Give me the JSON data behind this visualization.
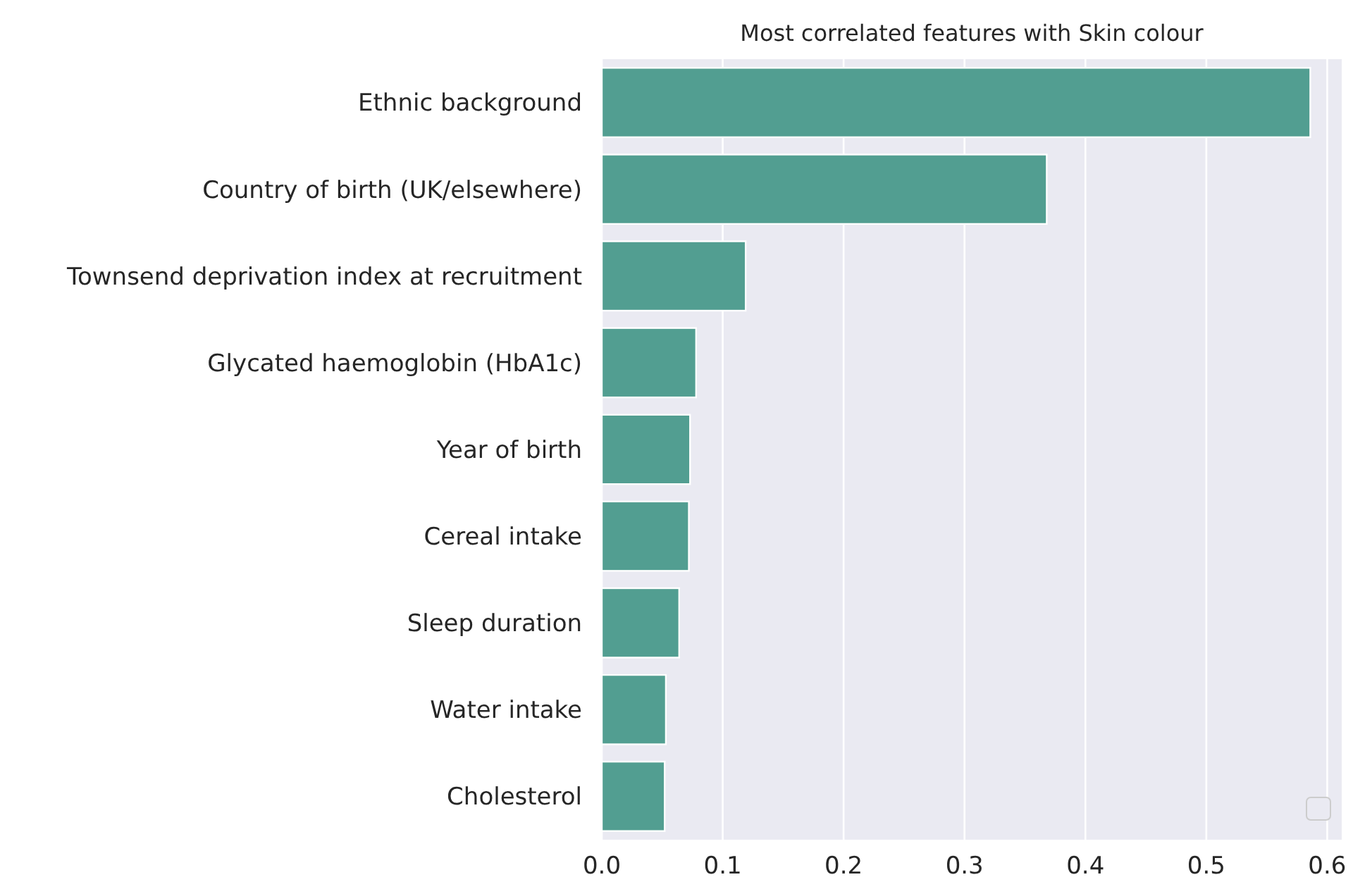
{
  "chart_data": {
    "type": "bar",
    "orientation": "horizontal",
    "title": "Most correlated features with Skin colour",
    "categories": [
      "Ethnic background",
      "Country of birth (UK/elsewhere)",
      "Townsend deprivation index at recruitment",
      "Glycated haemoglobin (HbA1c)",
      "Year of birth",
      "Cereal intake",
      "Sleep duration",
      "Water intake",
      "Cholesterol"
    ],
    "values": [
      0.586,
      0.368,
      0.119,
      0.078,
      0.073,
      0.072,
      0.064,
      0.053,
      0.052
    ],
    "color": "#529e91",
    "xlim": [
      0,
      0.612
    ],
    "xticks": [
      {
        "value": 0,
        "label": "0.0"
      },
      0.1,
      0.2,
      0.3,
      0.4,
      0.5,
      0.6
    ],
    "grid": "x"
  }
}
